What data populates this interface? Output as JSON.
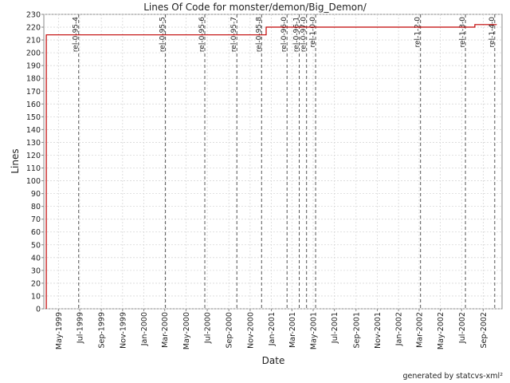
{
  "chart_data": {
    "type": "line",
    "title": "Lines Of Code for monster/demon/Big_Demon/",
    "xlabel": "Date",
    "ylabel": "Lines",
    "footer": "generated by statcvs-xml²",
    "ylim": [
      0,
      230
    ],
    "y_ticks": [
      0,
      10,
      20,
      30,
      40,
      50,
      60,
      70,
      80,
      90,
      100,
      110,
      120,
      130,
      140,
      150,
      160,
      170,
      180,
      190,
      200,
      210,
      220,
      230
    ],
    "xlim": [
      "1999-03-20",
      "2002-10-25"
    ],
    "x_ticks": [
      {
        "label": "May-1999",
        "date": "1999-05-01"
      },
      {
        "label": "Jul-1999",
        "date": "1999-07-01"
      },
      {
        "label": "Sep-1999",
        "date": "1999-09-01"
      },
      {
        "label": "Nov-1999",
        "date": "1999-11-01"
      },
      {
        "label": "Jan-2000",
        "date": "2000-01-01"
      },
      {
        "label": "Mar-2000",
        "date": "2000-03-01"
      },
      {
        "label": "May-2000",
        "date": "2000-05-01"
      },
      {
        "label": "Jul-2000",
        "date": "2000-07-01"
      },
      {
        "label": "Sep-2000",
        "date": "2000-09-01"
      },
      {
        "label": "Nov-2000",
        "date": "2000-11-01"
      },
      {
        "label": "Jan-2001",
        "date": "2001-01-01"
      },
      {
        "label": "Mar-2001",
        "date": "2001-03-01"
      },
      {
        "label": "May-2001",
        "date": "2001-05-01"
      },
      {
        "label": "Jul-2001",
        "date": "2001-07-01"
      },
      {
        "label": "Sep-2001",
        "date": "2001-09-01"
      },
      {
        "label": "Nov-2001",
        "date": "2001-11-01"
      },
      {
        "label": "Jan-2002",
        "date": "2002-01-01"
      },
      {
        "label": "Mar-2002",
        "date": "2002-03-01"
      },
      {
        "label": "May-2002",
        "date": "2002-05-01"
      },
      {
        "label": "Jul-2002",
        "date": "2002-07-01"
      },
      {
        "label": "Sep-2002",
        "date": "2002-09-01"
      }
    ],
    "grid": true,
    "series": [
      {
        "color": "#c00000",
        "step": true,
        "points": [
          {
            "x": "1999-03-27",
            "y": 0
          },
          {
            "x": "1999-03-27",
            "y": 214
          },
          {
            "x": "2000-12-17",
            "y": 214
          },
          {
            "x": "2000-12-17",
            "y": 220
          },
          {
            "x": "2002-08-08",
            "y": 220
          },
          {
            "x": "2002-08-08",
            "y": 222
          },
          {
            "x": "2002-10-10",
            "y": 222
          }
        ]
      }
    ],
    "releases": [
      {
        "label": "rel-0-95-4",
        "date": "1999-06-28"
      },
      {
        "label": "rel-0-95-5",
        "date": "2000-03-03"
      },
      {
        "label": "rel-0-95-6",
        "date": "2000-06-24"
      },
      {
        "label": "rel-0-95-7",
        "date": "2000-09-24"
      },
      {
        "label": "rel-0-95-8",
        "date": "2000-12-04"
      },
      {
        "label": "rel-0-96-0",
        "date": "2001-02-15"
      },
      {
        "label": "rel-0-96-1",
        "date": "2001-03-22"
      },
      {
        "label": "rel-0-97-0",
        "date": "2001-04-12"
      },
      {
        "label": "rel-1-0-0",
        "date": "2001-05-08"
      },
      {
        "label": "rel-1-2-0",
        "date": "2002-03-05"
      },
      {
        "label": "rel-1-3-0",
        "date": "2002-07-12"
      },
      {
        "label": "rel-1-4-0",
        "date": "2002-10-04"
      }
    ]
  }
}
